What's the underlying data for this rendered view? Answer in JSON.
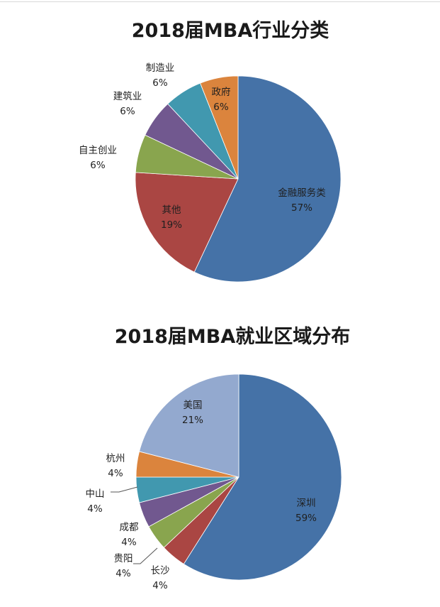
{
  "chart_data": [
    {
      "type": "pie",
      "title": "2018届MBA行业分类",
      "slices": [
        {
          "label": "金融服务类",
          "value": 57,
          "value_label": "57%",
          "color": "#4572A7"
        },
        {
          "label": "其他",
          "value": 19,
          "value_label": "19%",
          "color": "#AA4643"
        },
        {
          "label": "自主创业",
          "value": 6,
          "value_label": "6%",
          "color": "#89A54E"
        },
        {
          "label": "建筑业",
          "value": 6,
          "value_label": "6%",
          "color": "#71588F"
        },
        {
          "label": "制造业",
          "value": 6,
          "value_label": "6%",
          "color": "#4198AF"
        },
        {
          "label": "政府",
          "value": 6,
          "value_label": "6%",
          "color": "#DB843D"
        }
      ]
    },
    {
      "type": "pie",
      "title": "2018届MBA就业区域分布",
      "slices": [
        {
          "label": "深圳",
          "value": 59,
          "value_label": "59%",
          "color": "#4572A7"
        },
        {
          "label": "长沙",
          "value": 4,
          "value_label": "4%",
          "color": "#AA4643"
        },
        {
          "label": "贵阳",
          "value": 4,
          "value_label": "4%",
          "color": "#89A54E"
        },
        {
          "label": "成都",
          "value": 4,
          "value_label": "4%",
          "color": "#71588F"
        },
        {
          "label": "中山",
          "value": 4,
          "value_label": "4%",
          "color": "#4198AF"
        },
        {
          "label": "杭州",
          "value": 4,
          "value_label": "4%",
          "color": "#DB843D"
        },
        {
          "label": "美国",
          "value": 21,
          "value_label": "21%",
          "color": "#93A9CF"
        }
      ]
    }
  ]
}
